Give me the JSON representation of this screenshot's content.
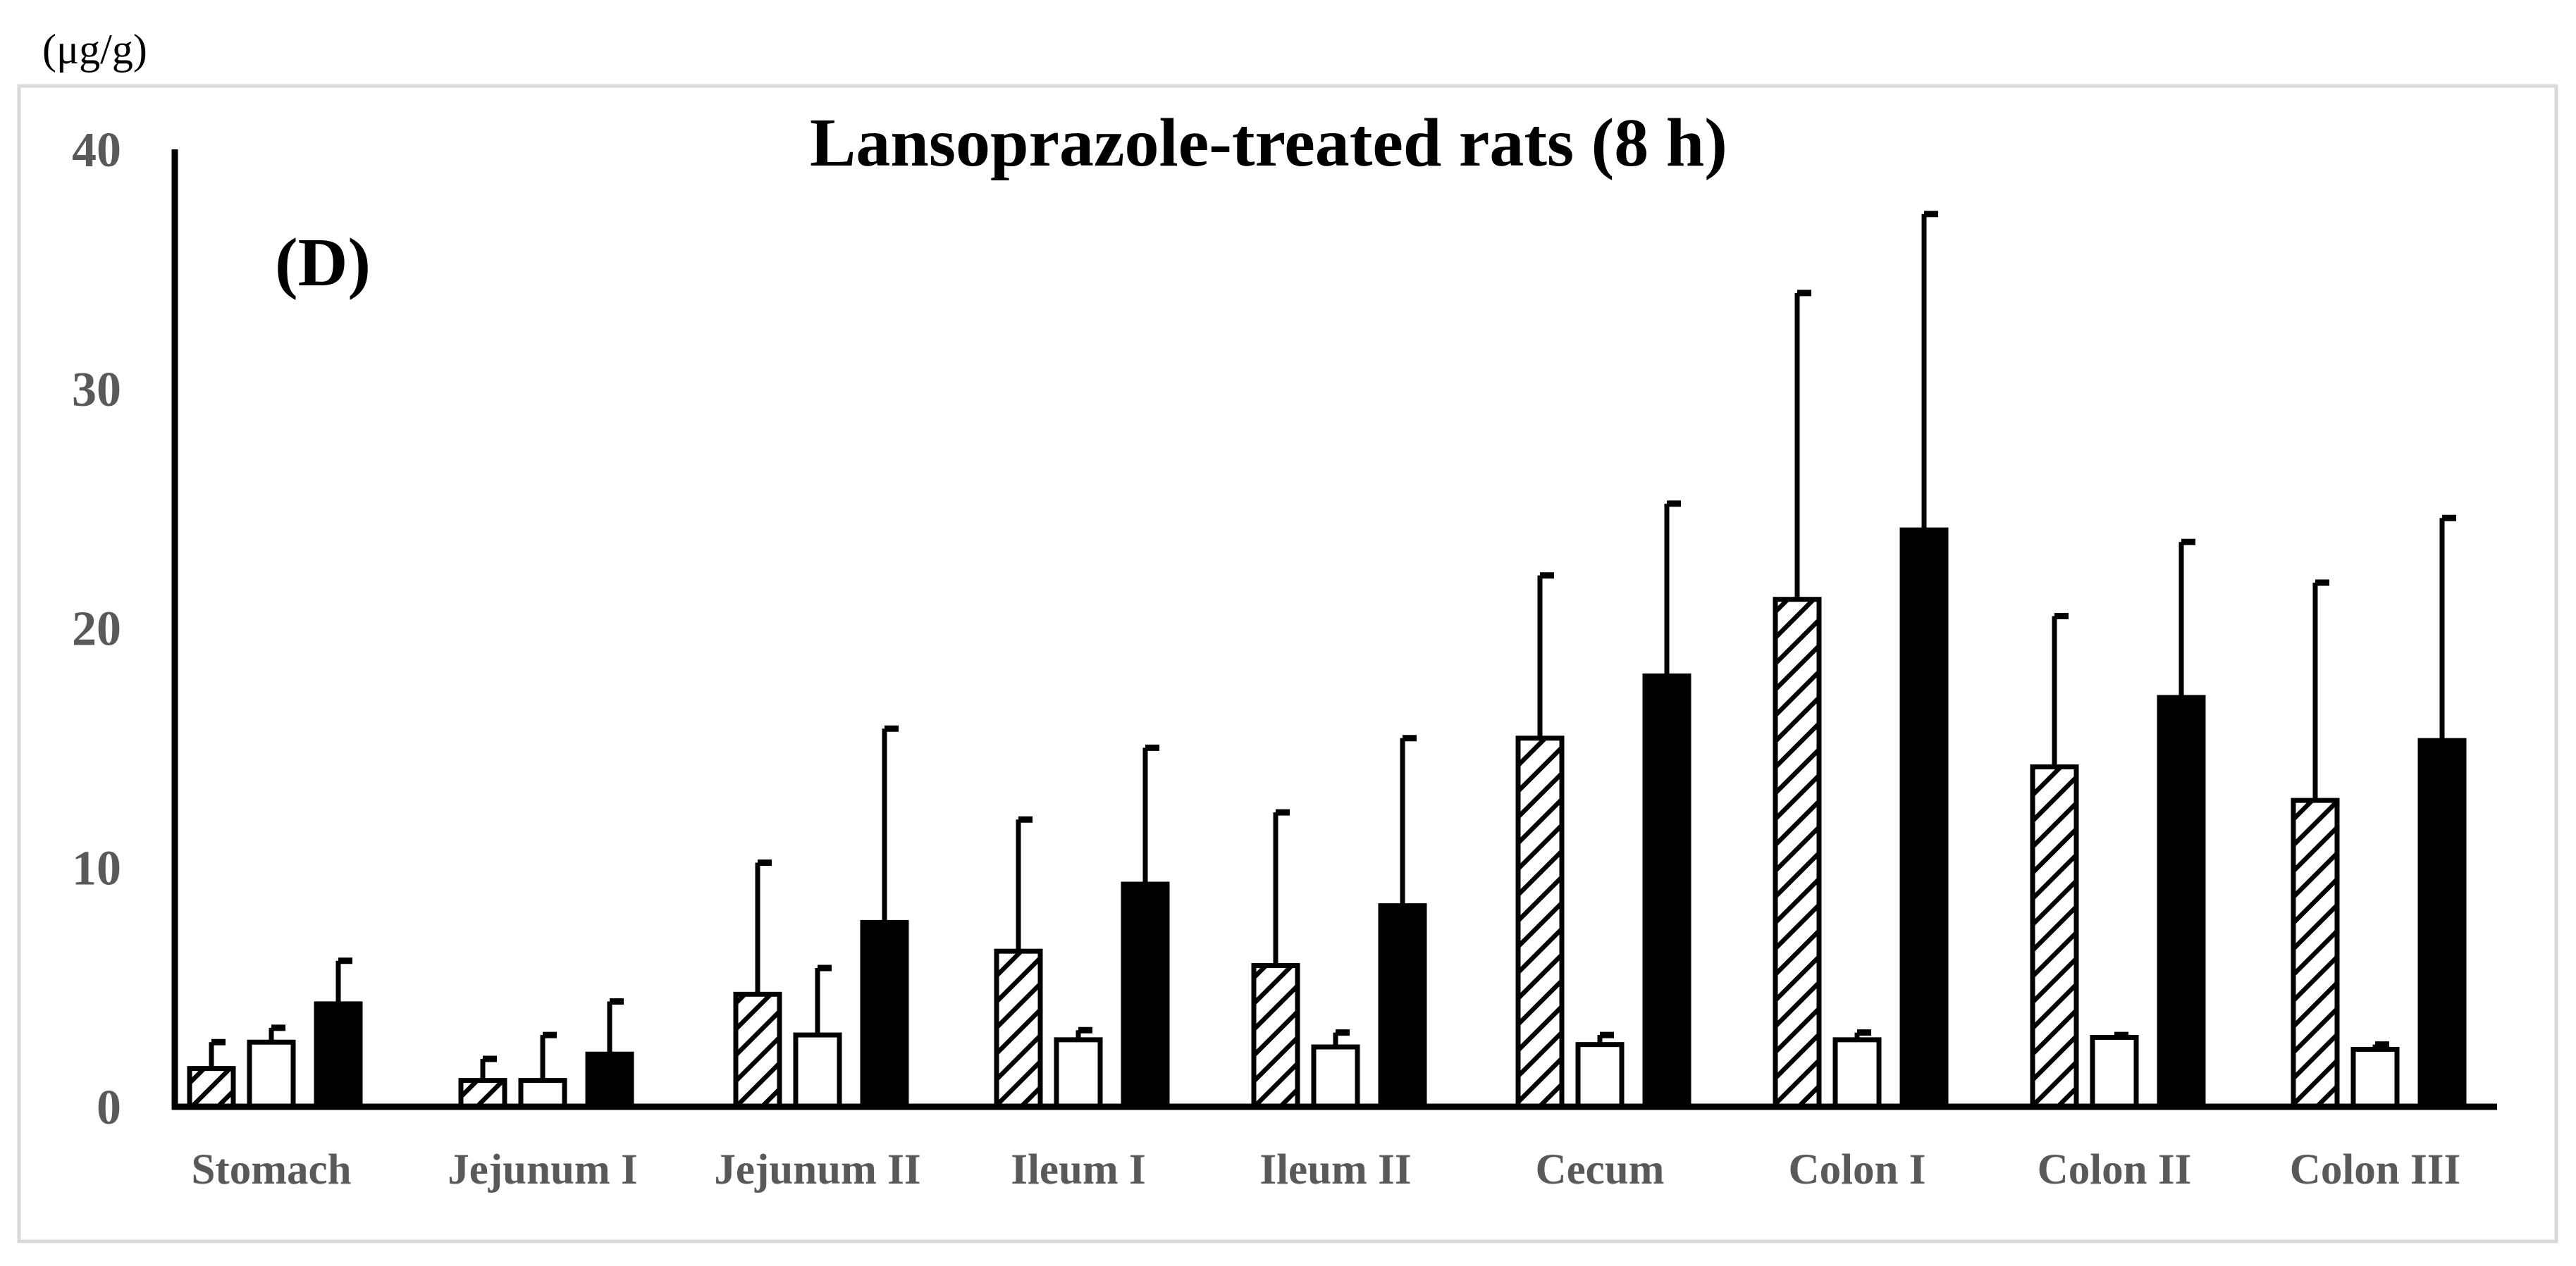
{
  "chart_data": {
    "type": "bar",
    "title": "Lansoprazole-treated rats (8 h)",
    "panel_label": "(D)",
    "ylabel": "(μg/g)",
    "xlabel": "",
    "ylim": [
      0,
      40
    ],
    "yticks": [
      0,
      10,
      20,
      30,
      40
    ],
    "grid": false,
    "legend": "none",
    "categories": [
      "Stomach",
      "Jejunum I",
      "Jejunum II",
      "Ileum I",
      "Ileum II",
      "Cecum",
      "Colon I",
      "Colon II",
      "Colon III"
    ],
    "series": [
      {
        "name": "hatched",
        "pattern": "hatch",
        "values": [
          1.6,
          1.1,
          4.7,
          6.5,
          5.9,
          15.4,
          21.2,
          14.2,
          12.8
        ],
        "errors": [
          1.1,
          0.9,
          5.5,
          5.5,
          6.4,
          6.8,
          12.8,
          6.3,
          9.1
        ]
      },
      {
        "name": "open",
        "pattern": "white",
        "values": [
          2.7,
          1.1,
          3.0,
          2.8,
          2.5,
          2.6,
          2.8,
          2.9,
          2.4
        ],
        "errors": [
          0.6,
          1.9,
          2.8,
          0.4,
          0.6,
          0.4,
          0.3,
          0.1,
          0.2
        ]
      },
      {
        "name": "solid",
        "pattern": "black",
        "values": [
          4.3,
          2.2,
          7.7,
          9.3,
          8.4,
          18.0,
          24.1,
          17.1,
          15.3
        ],
        "errors": [
          1.8,
          2.2,
          8.1,
          5.7,
          7.0,
          7.2,
          13.2,
          6.5,
          9.3
        ]
      }
    ],
    "colors": {
      "axis": "#000000",
      "tick_text": "#595959",
      "fill_black": "#000000",
      "fill_white": "#ffffff",
      "frame": "#d9d9d9"
    }
  }
}
